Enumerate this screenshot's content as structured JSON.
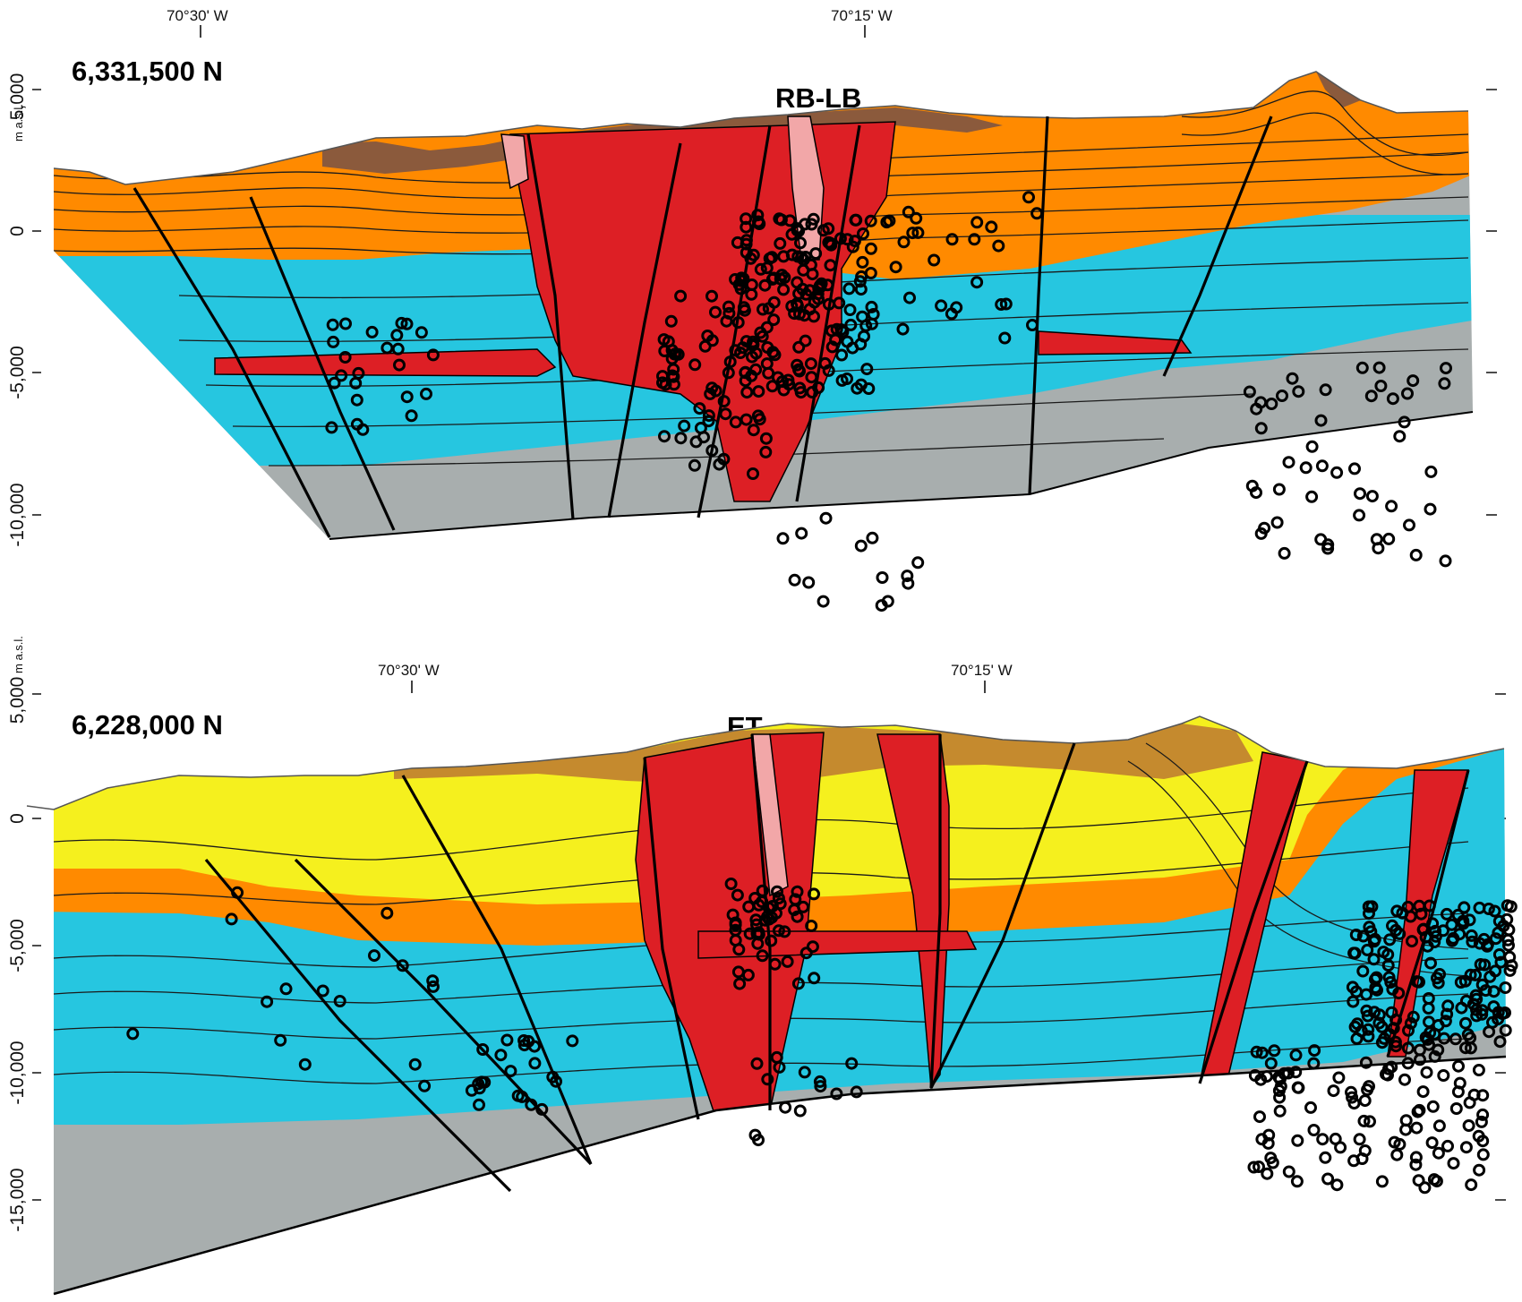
{
  "colors": {
    "upper_brown": "#8b5a3c",
    "upper_tan": "#c58a2e",
    "yellow_unit": "#f5f01e",
    "orange_unit": "#ff8a00",
    "cyan_unit": "#26c6e0",
    "gray_unit": "#a8aeae",
    "intrusion_red": "#dd1f25",
    "intrusion_pink": "#f2a7a8",
    "earthquake_marker": "#000000"
  },
  "icons": [
    "tick-mark",
    "earthquake-circle"
  ],
  "sections": [
    {
      "northing": "6,331,500 N",
      "system_label": "RB-LB",
      "unit_label": "m a.s.l.",
      "longitudes": [
        "70°30' W",
        "70°15' W"
      ],
      "elevation_ticks": [
        "5,000",
        "0",
        "-5,000",
        "-10,000"
      ]
    },
    {
      "northing": "6,228,000 N",
      "system_label": "ET",
      "unit_label": "m a.s.l.",
      "longitudes": [
        "70°30' W",
        "70°15' W"
      ],
      "elevation_ticks": [
        "5,000",
        "0",
        "-5,000",
        "-10,000",
        "-15,000"
      ]
    }
  ]
}
